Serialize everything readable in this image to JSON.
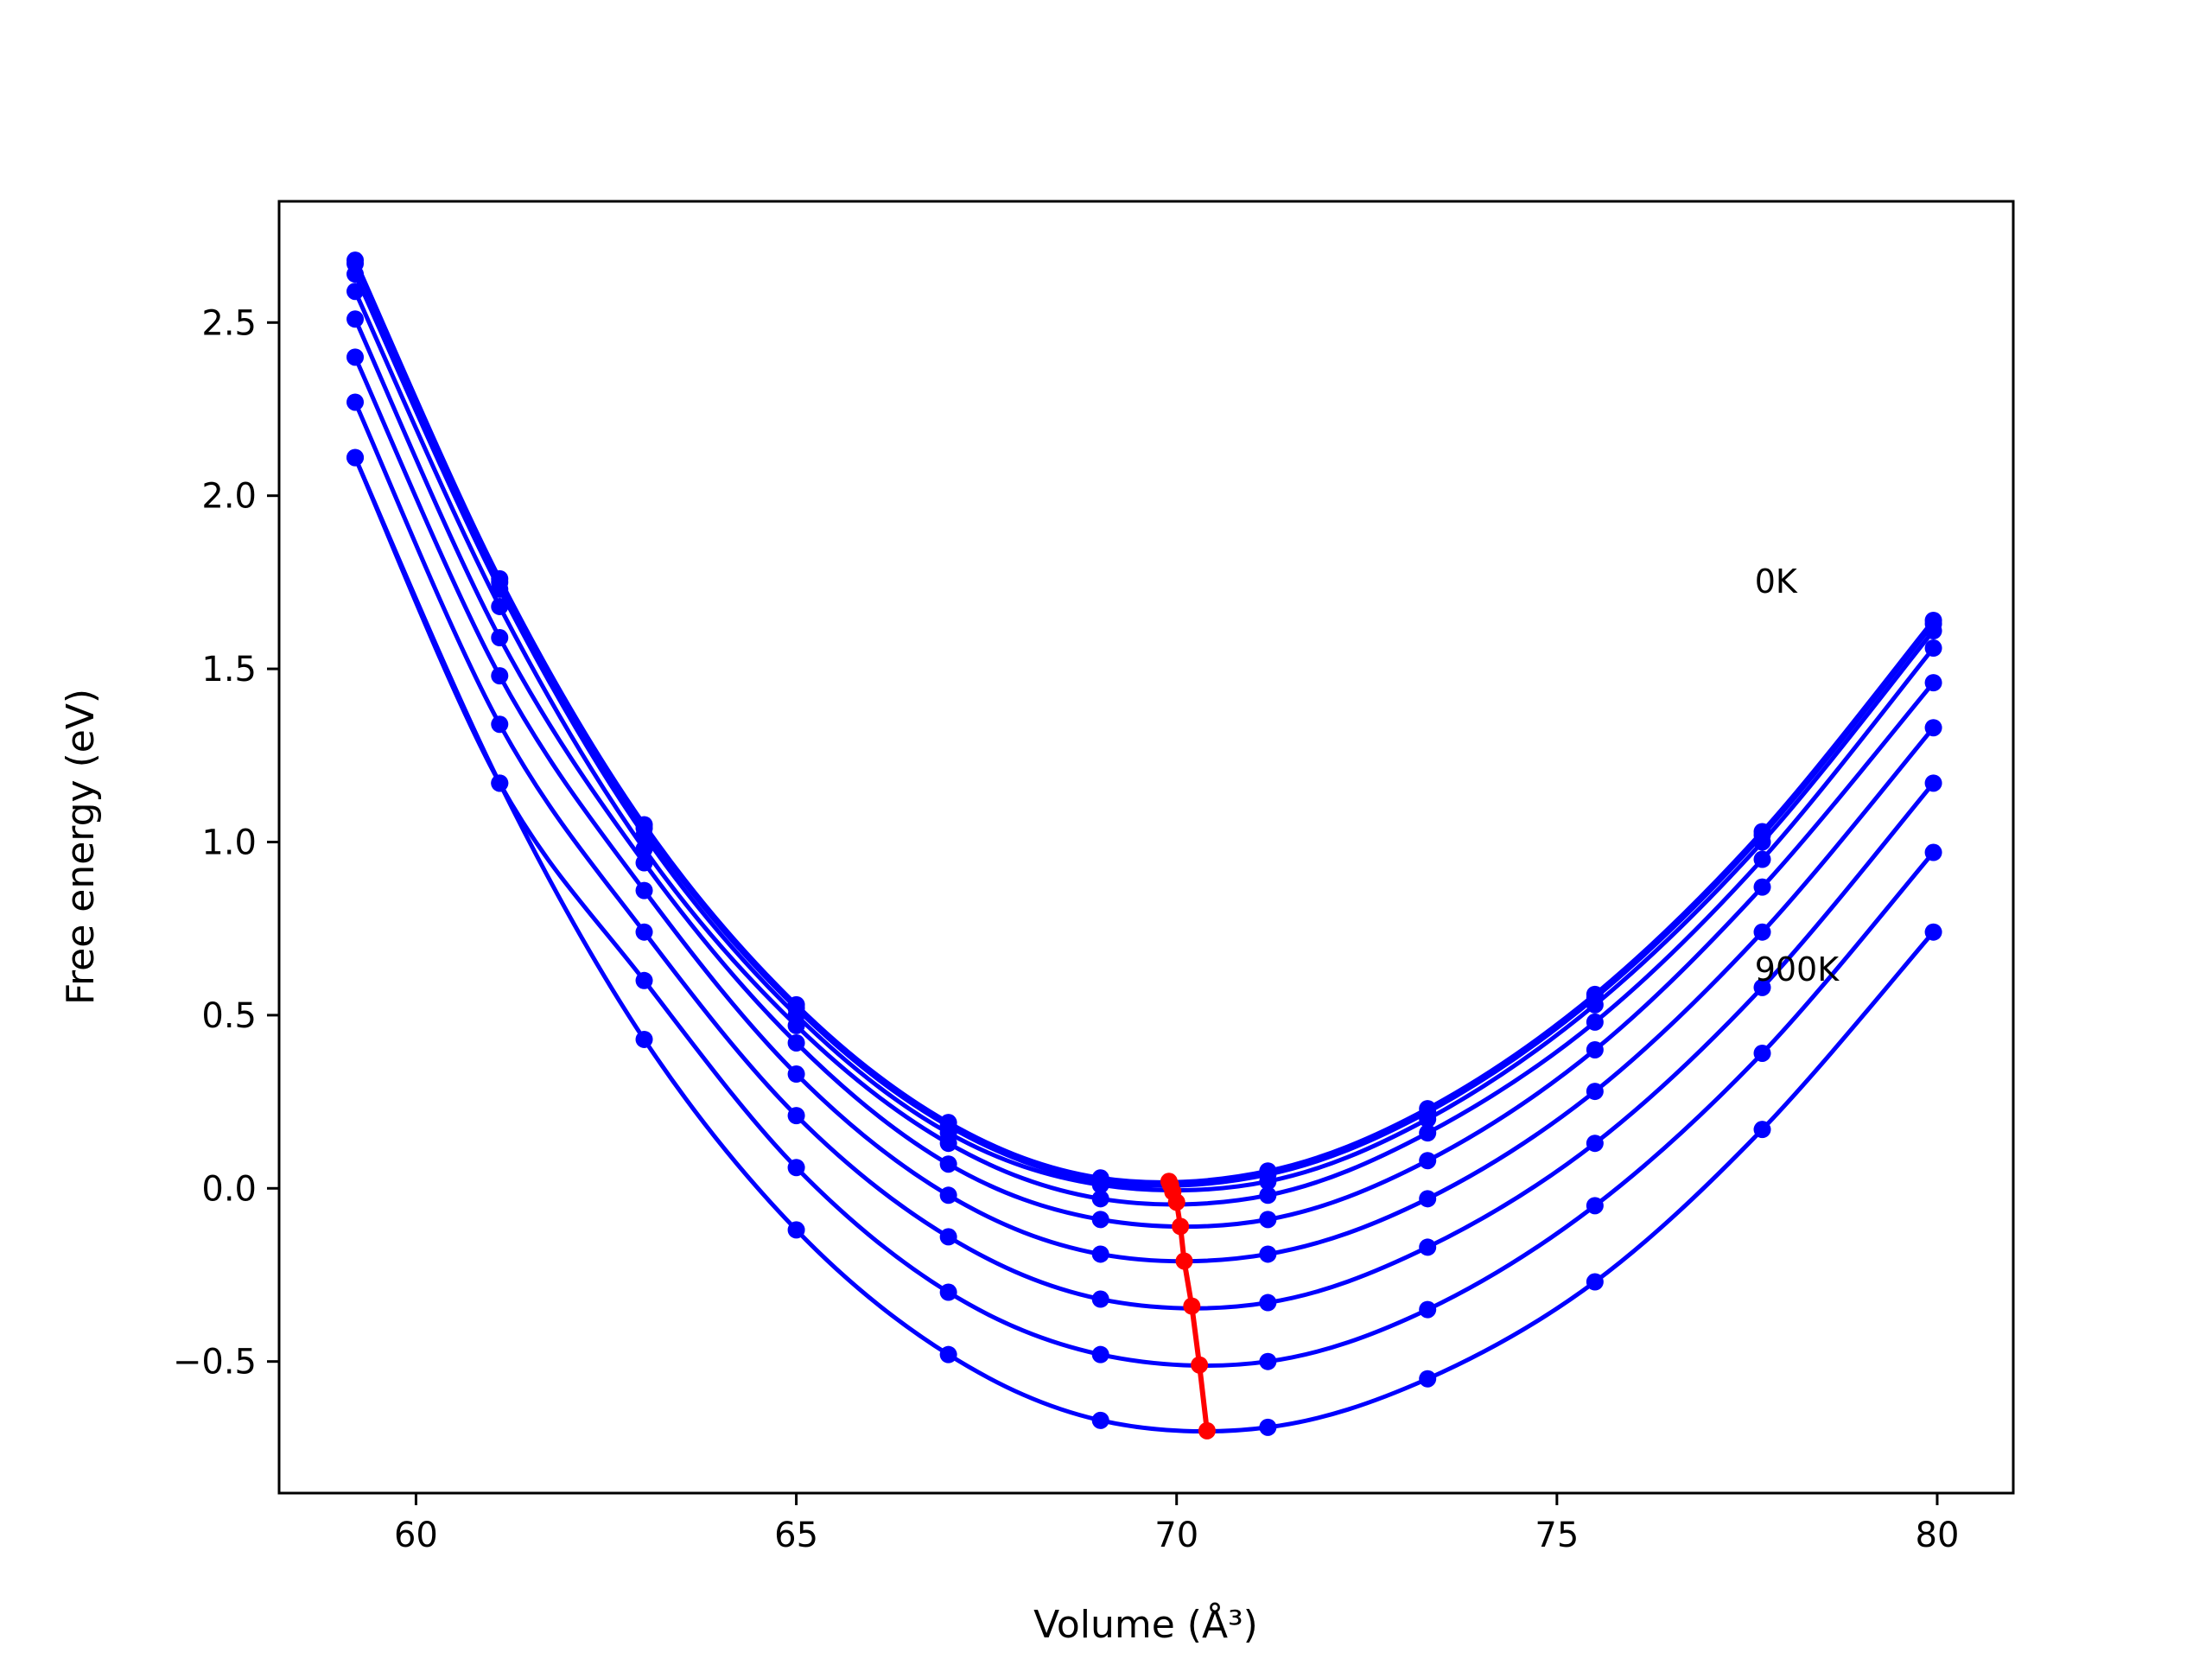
{
  "chart_data": {
    "type": "line",
    "xlabel": "Volume (Å³)",
    "ylabel": "Free energy (eV)",
    "xlim": [
      58.2,
      81.0
    ],
    "ylim": [
      -0.88,
      2.85
    ],
    "xticks": [
      60,
      65,
      70,
      75,
      80
    ],
    "xtick_labels": [
      "60",
      "65",
      "70",
      "75",
      "80"
    ],
    "yticks": [
      -0.5,
      0.0,
      0.5,
      1.0,
      1.5,
      2.0,
      2.5
    ],
    "ytick_labels": [
      "−0.5",
      "0.0",
      "0.5",
      "1.0",
      "1.5",
      "2.0",
      "2.5"
    ],
    "grid": false,
    "annotations": [
      {
        "text": "0K",
        "x": 77.6,
        "y": 1.72
      },
      {
        "text": "900K",
        "x": 77.6,
        "y": 0.6
      }
    ],
    "x": [
      59.2,
      61.1,
      63.0,
      65.0,
      67.0,
      69.0,
      71.2,
      73.3,
      75.5,
      77.7,
      79.95
    ],
    "series": [
      {
        "color": "#0000ff",
        "values": [
          2.68,
          1.76,
          1.05,
          0.53,
          0.19,
          0.03,
          0.05,
          0.23,
          0.56,
          1.03,
          1.64
        ]
      },
      {
        "color": "#0000ff",
        "values": [
          2.67,
          1.75,
          1.04,
          0.52,
          0.18,
          0.02,
          0.04,
          0.22,
          0.55,
          1.02,
          1.63
        ]
      },
      {
        "color": "#0000ff",
        "values": [
          2.64,
          1.73,
          1.02,
          0.5,
          0.16,
          0.01,
          0.02,
          0.2,
          0.53,
          1.0,
          1.61
        ]
      },
      {
        "color": "#0000ff",
        "values": [
          2.59,
          1.68,
          0.98,
          0.47,
          0.13,
          -0.03,
          -0.02,
          0.16,
          0.48,
          0.95,
          1.56
        ]
      },
      {
        "color": "#0000ff",
        "values": [
          2.51,
          1.59,
          0.94,
          0.42,
          0.07,
          -0.09,
          -0.09,
          0.08,
          0.4,
          0.87,
          1.46
        ]
      },
      {
        "color": "#0000ff",
        "values": [
          2.4,
          1.48,
          0.86,
          0.33,
          -0.02,
          -0.19,
          -0.19,
          -0.03,
          0.28,
          0.74,
          1.33
        ]
      },
      {
        "color": "#0000ff",
        "values": [
          2.27,
          1.34,
          0.74,
          0.21,
          -0.14,
          -0.32,
          -0.33,
          -0.17,
          0.13,
          0.58,
          1.17
        ]
      },
      {
        "color": "#0000ff",
        "values": [
          2.11,
          1.17,
          0.6,
          0.06,
          -0.3,
          -0.48,
          -0.5,
          -0.35,
          -0.05,
          0.39,
          0.97
        ]
      },
      {
        "color": "#0000ff",
        "values": [
          2.11,
          1.17,
          0.43,
          -0.12,
          -0.48,
          -0.67,
          -0.69,
          -0.55,
          -0.27,
          0.17,
          0.74
        ]
      }
    ],
    "minima_path": {
      "color": "#ff0000",
      "x": [
        69.9,
        69.92,
        69.95,
        70.0,
        70.05,
        70.1,
        70.2,
        70.3,
        70.4
      ],
      "y": [
        0.02,
        0.01,
        -0.01,
        -0.04,
        -0.11,
        -0.21,
        -0.34,
        -0.51,
        -0.7
      ]
    }
  }
}
